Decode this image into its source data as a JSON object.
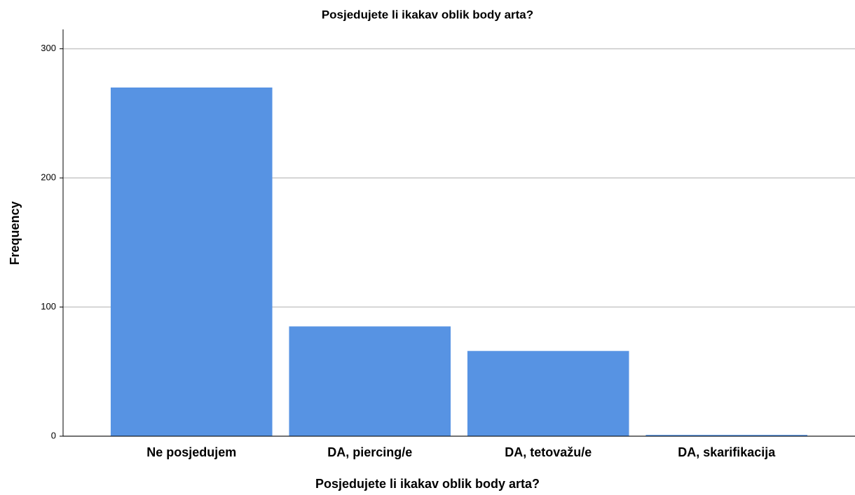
{
  "chart_data": {
    "type": "bar",
    "title": "Posjedujete li ikakav oblik body arta?",
    "x_label": "Posjedujete li ikakav oblik body arta?",
    "y_label": "Frequency",
    "categories": [
      "Ne posjedujem",
      "DA, piercing/e",
      "DA, tetovažu/e",
      "DA, skarifikacija"
    ],
    "values": [
      270,
      85,
      66,
      1
    ],
    "color": "#5793e3",
    "ylim": [
      0,
      315
    ],
    "yticks": [
      0,
      100,
      200,
      300
    ],
    "grid": true
  }
}
